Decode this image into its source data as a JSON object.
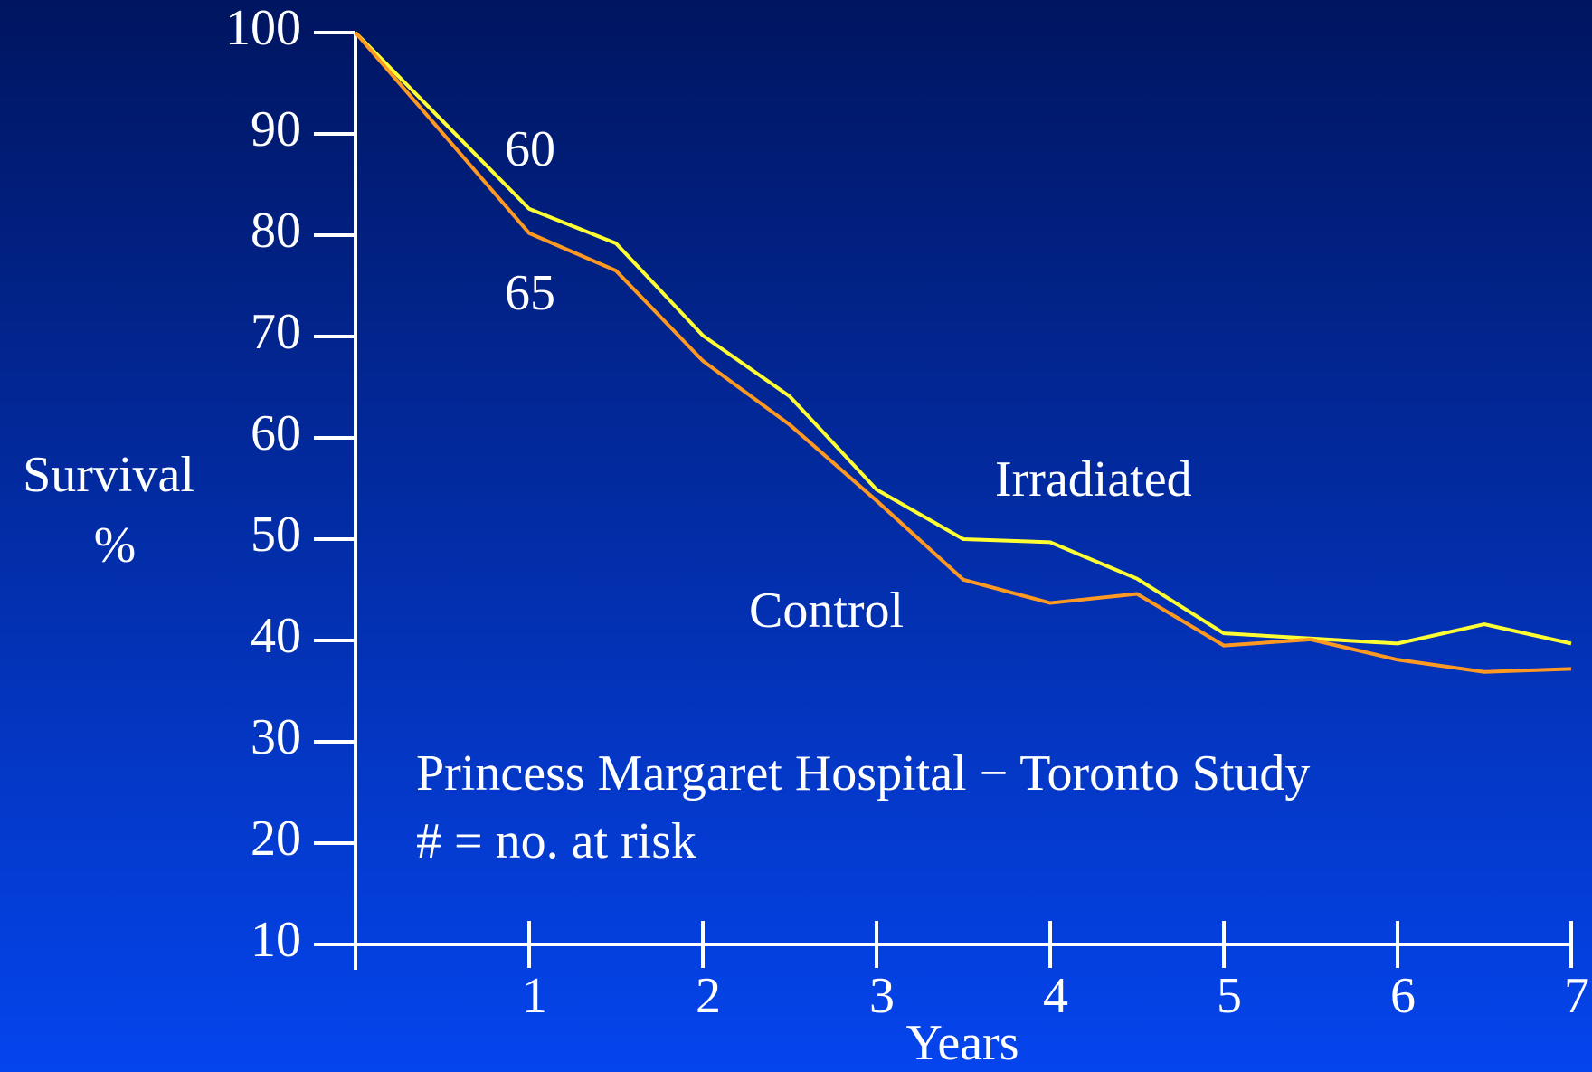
{
  "chart_data": {
    "type": "line",
    "ylabel": [
      "Survival",
      "%"
    ],
    "xlabel": "Years",
    "x": [
      0,
      1,
      1.5,
      2,
      2.5,
      3,
      3.5,
      4,
      4.5,
      5,
      5.5,
      6,
      6.5,
      7
    ],
    "series": [
      {
        "name": "Irradiated",
        "color": "#ffff33",
        "values": [
          100,
          82.6,
          79.2,
          70.1,
          64.1,
          54.9,
          50.0,
          49.7,
          46.1,
          40.7,
          40.2,
          39.7,
          41.6,
          39.7
        ]
      },
      {
        "name": "Control",
        "color": "#ff9922",
        "values": [
          100,
          80.2,
          76.5,
          67.6,
          61.3,
          53.8,
          46.0,
          43.7,
          44.6,
          39.5,
          40.1,
          38.1,
          36.9,
          37.2
        ]
      }
    ],
    "xlim": [
      0,
      7
    ],
    "xticks": [
      1,
      2,
      3,
      4,
      5,
      6,
      7
    ],
    "ylim": [
      10,
      100
    ],
    "yticks": [
      10,
      20,
      30,
      40,
      50,
      60,
      70,
      80,
      90,
      100
    ],
    "annotations": [
      "60",
      "65",
      "Princess Margaret Hospital − Toronto Study",
      "# = no. at risk"
    ]
  }
}
